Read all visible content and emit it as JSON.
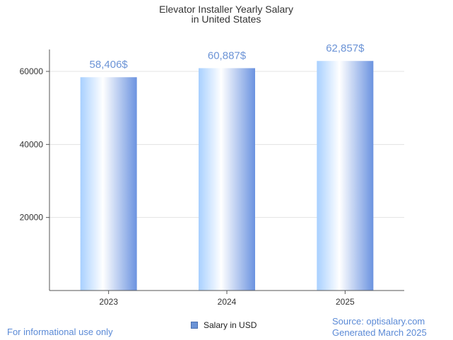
{
  "chart_data": {
    "type": "bar",
    "title": [
      "Elevator Installer Yearly Salary",
      "in United States"
    ],
    "categories": [
      "2023",
      "2024",
      "2025"
    ],
    "series": [
      {
        "name": "Salary in USD",
        "values": [
          58406,
          60887,
          62857
        ]
      }
    ],
    "data_labels": [
      "58,406$",
      "60,887$",
      "62,857$"
    ],
    "y_ticks": [
      20000,
      40000,
      60000
    ],
    "ylim": [
      0,
      66000
    ],
    "grid": true,
    "legend_position": "bottom",
    "colors": {
      "bar_light": "#ffffff",
      "bar_mid": "#bcdcff",
      "bar_dark": "#6b93e0",
      "label": "#6b93d6"
    }
  },
  "footer": {
    "left": "For informational use only",
    "source": "Source: optisalary.com",
    "generated": "Generated March 2025"
  }
}
